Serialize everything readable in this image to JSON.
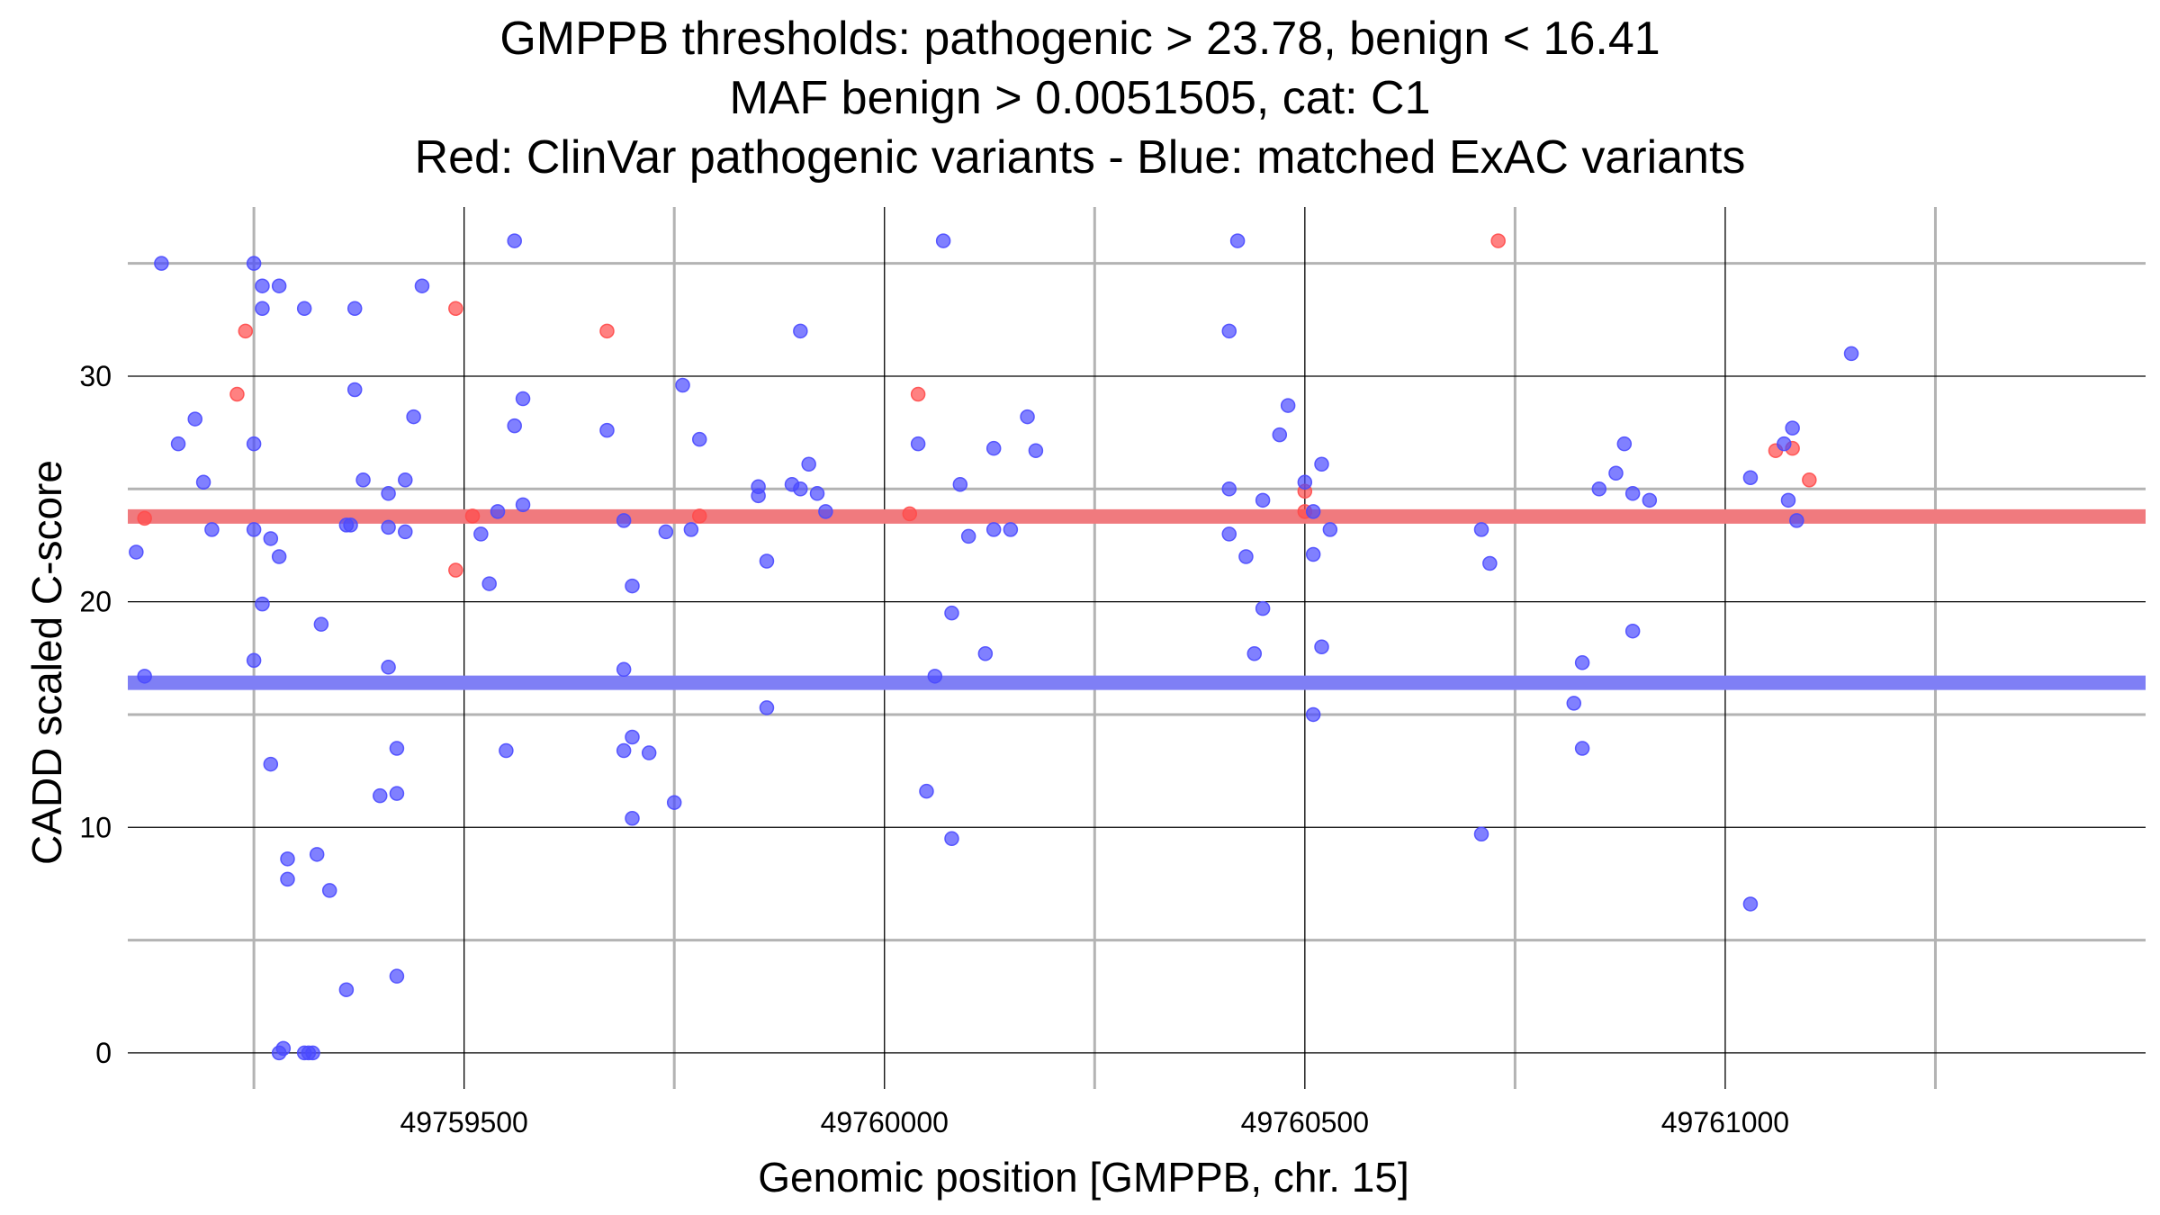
{
  "chart_data": {
    "type": "scatter",
    "title_lines": [
      "GMPPB thresholds: pathogenic > 23.78, benign < 16.41",
      "MAF benign > 0.0051505, cat: C1",
      "Red: ClinVar pathogenic variants - Blue: matched ExAC variants"
    ],
    "xlabel": "Genomic position [GMPPB, chr. 15]",
    "ylabel": "CADD scaled C-score",
    "xlim": [
      49759100,
      49761500
    ],
    "ylim": [
      -1.6,
      37.5
    ],
    "x_ticks": [
      49759500,
      49760000,
      49760500,
      49761000
    ],
    "x_tick_labels": [
      "49759500",
      "49760000",
      "49760500",
      "49761000"
    ],
    "x_minor_grid": [
      49759250,
      49759750,
      49760250,
      49760750,
      49761250
    ],
    "y_ticks": [
      0,
      10,
      20,
      30
    ],
    "y_tick_labels": [
      "0",
      "10",
      "20",
      "30"
    ],
    "y_minor_grid": [
      5,
      15,
      25,
      35
    ],
    "grid": true,
    "thresholds": [
      {
        "name": "pathogenic",
        "value": 23.78,
        "color": "#f07a7e"
      },
      {
        "name": "benign",
        "value": 16.41,
        "color": "#7f7ff5"
      }
    ],
    "colors": {
      "pathogenic": "#ff4b4b",
      "benign": "#4a4aff",
      "major_grid": "#000000",
      "minor_grid": "#b3b3b3"
    },
    "series": [
      {
        "name": "Red",
        "color": "#ff4b4b",
        "points": [
          [
            49759120,
            23.7
          ],
          [
            49759230,
            29.2
          ],
          [
            49759240,
            32.0
          ],
          [
            49759490,
            21.4
          ],
          [
            49759490,
            33.0
          ],
          [
            49759510,
            23.8
          ],
          [
            49759670,
            32.0
          ],
          [
            49759780,
            23.8
          ],
          [
            49760030,
            23.9
          ],
          [
            49760040,
            29.2
          ],
          [
            49760500,
            24.9
          ],
          [
            49760500,
            24.0
          ],
          [
            49760730,
            36.0
          ],
          [
            49761060,
            26.7
          ],
          [
            49761080,
            26.8
          ],
          [
            49761100,
            25.4
          ]
        ]
      },
      {
        "name": "Blue",
        "color": "#4a4aff",
        "points": [
          [
            49759110,
            22.2
          ],
          [
            49759120,
            16.7
          ],
          [
            49759140,
            35.0
          ],
          [
            49759160,
            27.0
          ],
          [
            49759180,
            28.1
          ],
          [
            49759190,
            25.3
          ],
          [
            49759200,
            23.2
          ],
          [
            49759250,
            35.0
          ],
          [
            49759250,
            27.0
          ],
          [
            49759250,
            23.2
          ],
          [
            49759250,
            17.4
          ],
          [
            49759260,
            19.9
          ],
          [
            49759260,
            34.0
          ],
          [
            49759260,
            33.0
          ],
          [
            49759270,
            22.8
          ],
          [
            49759270,
            12.8
          ],
          [
            49759280,
            34.0
          ],
          [
            49759280,
            22.0
          ],
          [
            49759290,
            8.6
          ],
          [
            49759290,
            7.7
          ],
          [
            49759280,
            0.0
          ],
          [
            49759285,
            0.2
          ],
          [
            49759310,
            33.0
          ],
          [
            49759310,
            0.0
          ],
          [
            49759315,
            0.0
          ],
          [
            49759320,
            0.0
          ],
          [
            49759325,
            8.8
          ],
          [
            49759330,
            19.0
          ],
          [
            49759340,
            7.2
          ],
          [
            49759360,
            23.4
          ],
          [
            49759360,
            2.8
          ],
          [
            49759365,
            23.4
          ],
          [
            49759370,
            29.4
          ],
          [
            49759370,
            33.0
          ],
          [
            49759380,
            25.4
          ],
          [
            49759400,
            11.4
          ],
          [
            49759410,
            23.3
          ],
          [
            49759410,
            17.1
          ],
          [
            49759410,
            24.8
          ],
          [
            49759420,
            13.5
          ],
          [
            49759420,
            11.5
          ],
          [
            49759420,
            3.4
          ],
          [
            49759430,
            23.1
          ],
          [
            49759430,
            25.4
          ],
          [
            49759440,
            28.2
          ],
          [
            49759450,
            34.0
          ],
          [
            49759520,
            23.0
          ],
          [
            49759530,
            20.8
          ],
          [
            49759540,
            24.0
          ],
          [
            49759550,
            13.4
          ],
          [
            49759560,
            36.0
          ],
          [
            49759560,
            27.8
          ],
          [
            49759570,
            24.3
          ],
          [
            49759570,
            29.0
          ],
          [
            49759670,
            27.6
          ],
          [
            49759690,
            23.6
          ],
          [
            49759690,
            17.0
          ],
          [
            49759690,
            13.4
          ],
          [
            49759700,
            20.7
          ],
          [
            49759700,
            10.4
          ],
          [
            49759700,
            14.0
          ],
          [
            49759720,
            13.3
          ],
          [
            49759740,
            23.1
          ],
          [
            49759750,
            11.1
          ],
          [
            49759760,
            29.6
          ],
          [
            49759770,
            23.2
          ],
          [
            49759780,
            27.2
          ],
          [
            49759850,
            24.7
          ],
          [
            49759850,
            25.1
          ],
          [
            49759860,
            21.8
          ],
          [
            49759860,
            15.3
          ],
          [
            49759890,
            25.2
          ],
          [
            49759900,
            25.0
          ],
          [
            49759900,
            32.0
          ],
          [
            49759910,
            26.1
          ],
          [
            49759920,
            24.8
          ],
          [
            49759930,
            24.0
          ],
          [
            49760040,
            27.0
          ],
          [
            49760050,
            11.6
          ],
          [
            49760060,
            16.7
          ],
          [
            49760070,
            36.0
          ],
          [
            49760080,
            19.5
          ],
          [
            49760080,
            9.5
          ],
          [
            49760090,
            25.2
          ],
          [
            49760100,
            22.9
          ],
          [
            49760120,
            17.7
          ],
          [
            49760130,
            26.8
          ],
          [
            49760130,
            23.2
          ],
          [
            49760150,
            23.2
          ],
          [
            49760170,
            28.2
          ],
          [
            49760180,
            26.7
          ],
          [
            49760410,
            25.0
          ],
          [
            49760410,
            23.0
          ],
          [
            49760410,
            32.0
          ],
          [
            49760420,
            36.0
          ],
          [
            49760430,
            22.0
          ],
          [
            49760440,
            17.7
          ],
          [
            49760450,
            19.7
          ],
          [
            49760450,
            24.5
          ],
          [
            49760470,
            27.4
          ],
          [
            49760480,
            28.7
          ],
          [
            49760500,
            25.3
          ],
          [
            49760510,
            24.0
          ],
          [
            49760510,
            22.1
          ],
          [
            49760510,
            15.0
          ],
          [
            49760520,
            26.1
          ],
          [
            49760520,
            18.0
          ],
          [
            49760530,
            23.2
          ],
          [
            49760710,
            23.2
          ],
          [
            49760710,
            9.7
          ],
          [
            49760720,
            21.7
          ],
          [
            49760820,
            15.5
          ],
          [
            49760830,
            13.5
          ],
          [
            49760830,
            17.3
          ],
          [
            49760850,
            25.0
          ],
          [
            49760870,
            25.7
          ],
          [
            49760880,
            27.0
          ],
          [
            49760890,
            24.8
          ],
          [
            49760890,
            18.7
          ],
          [
            49760910,
            24.5
          ],
          [
            49761030,
            25.5
          ],
          [
            49761030,
            6.6
          ],
          [
            49761070,
            27.0
          ],
          [
            49761075,
            24.5
          ],
          [
            49761080,
            27.7
          ],
          [
            49761085,
            23.6
          ],
          [
            49761150,
            31.0
          ]
        ]
      }
    ]
  }
}
